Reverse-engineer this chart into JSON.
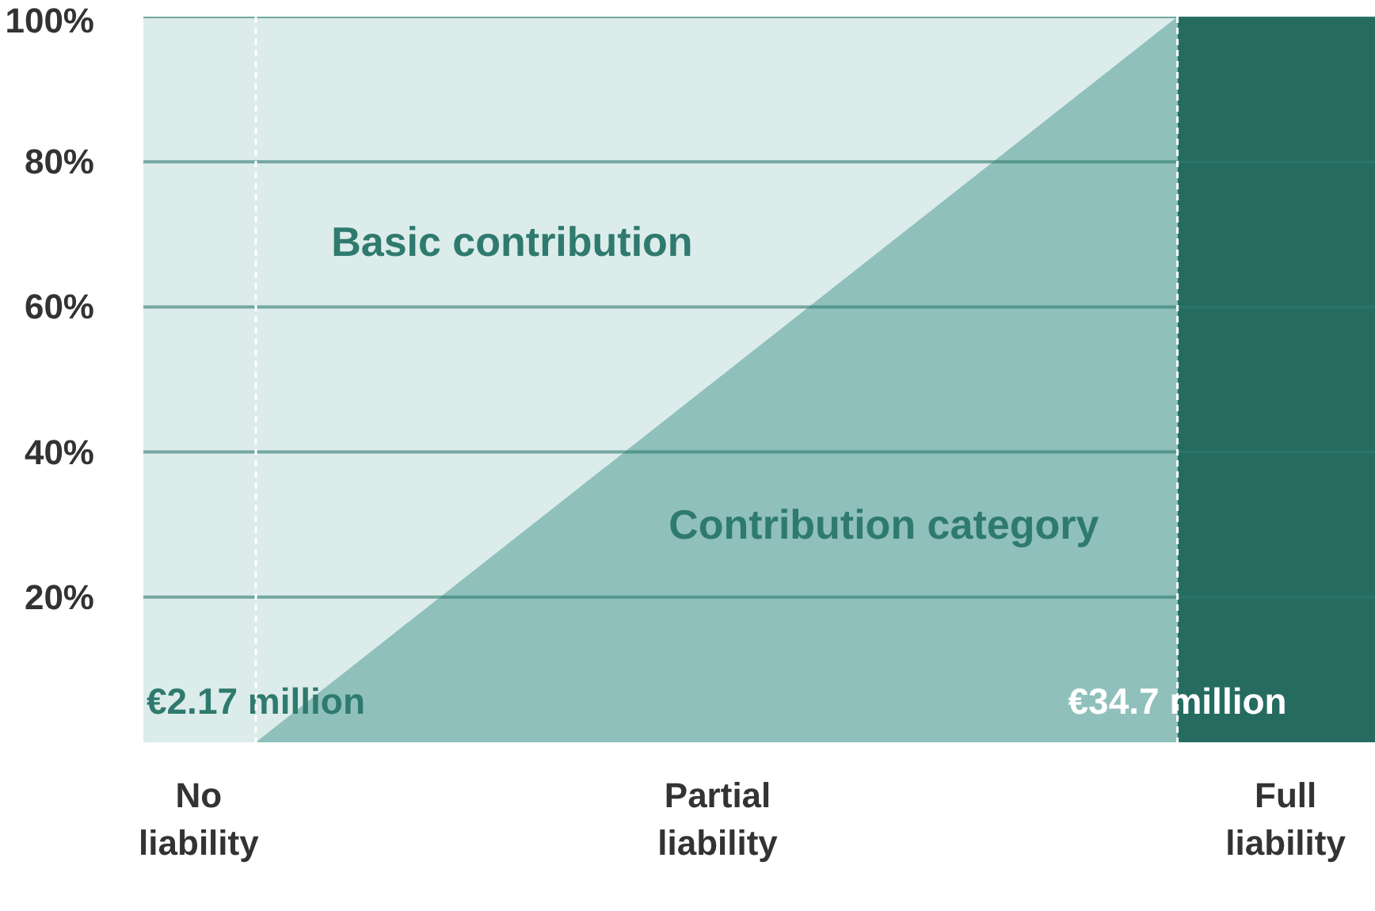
{
  "chart_data": {
    "type": "area",
    "series": [
      {
        "color": "#8fc0bc",
        "x": [
          2.17,
          34.7
        ],
        "values": [
          0,
          100
        ]
      }
    ],
    "xlim": [
      -1.8,
      41.7
    ],
    "ylim": [
      0,
      100
    ],
    "xticks": [
      {
        "value": 2.17,
        "label": "€2.17 million"
      },
      {
        "value": 34.7,
        "label": "€34.7 million"
      }
    ],
    "yticks": [
      {
        "value": 20,
        "label": "20%"
      },
      {
        "value": 40,
        "label": "40%"
      },
      {
        "value": 60,
        "label": "60%"
      },
      {
        "value": 80,
        "label": "80%"
      },
      {
        "value": 100,
        "label": "100%"
      }
    ],
    "grid": "y",
    "ref_lines": [
      {
        "axis": "x",
        "value": 2.17,
        "color": "#ffffff",
        "line_style": "dashed"
      },
      {
        "axis": "x",
        "value": 34.7,
        "color": "#ffffff",
        "line_style": "dashed"
      }
    ],
    "bands": [
      {
        "axis": "x",
        "from": -1.8,
        "to": 34.7,
        "color": "#dcecea"
      },
      {
        "axis": "x",
        "from": 34.7,
        "to": 41.7,
        "color": "#256b60"
      }
    ],
    "annotations": [
      "Basic contribution",
      "Contribution category",
      "No\nliability",
      "Partial\nliability",
      "Full\nliability"
    ]
  }
}
